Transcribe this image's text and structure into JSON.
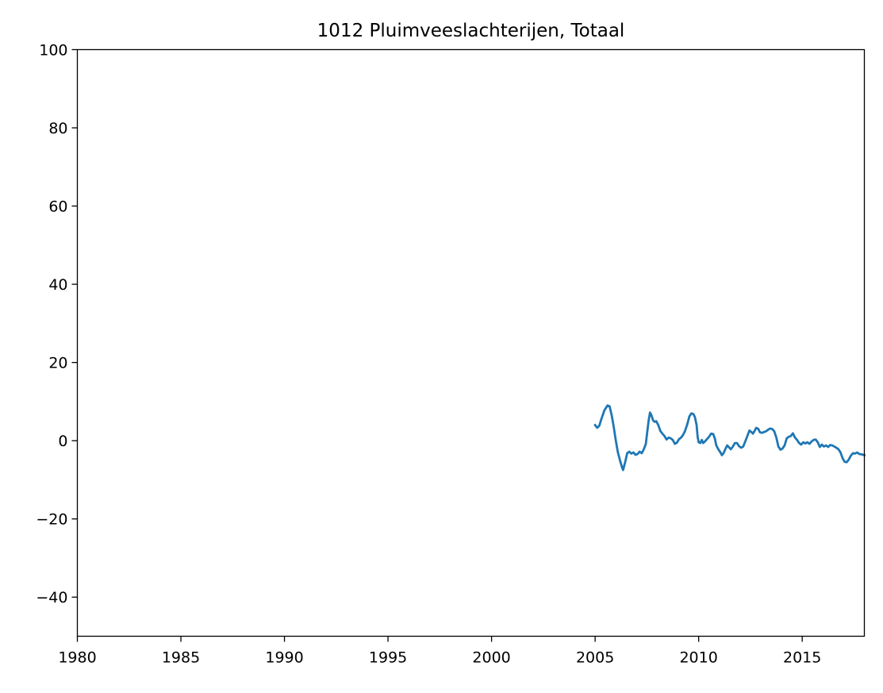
{
  "chart_data": {
    "type": "line",
    "title": "1012 Pluimveeslachterijen, Totaal",
    "xlabel": "",
    "ylabel": "",
    "xlim": [
      1980,
      2018
    ],
    "ylim": [
      -50,
      100
    ],
    "x_ticks": [
      1980,
      1985,
      1990,
      1995,
      2000,
      2005,
      2010,
      2015
    ],
    "y_ticks": [
      -40,
      -20,
      0,
      20,
      40,
      60,
      80,
      100
    ],
    "y_tick_labels": [
      "−40",
      "−20",
      "0",
      "20",
      "40",
      "60",
      "80",
      "100"
    ],
    "grid": false,
    "series": [
      {
        "color": "#1f77b4",
        "points": [
          [
            2005.0,
            4.0
          ],
          [
            2005.1,
            3.3
          ],
          [
            2005.2,
            3.8
          ],
          [
            2005.3,
            5.5
          ],
          [
            2005.45,
            7.8
          ],
          [
            2005.6,
            9.0
          ],
          [
            2005.7,
            8.8
          ],
          [
            2005.8,
            6.5
          ],
          [
            2005.9,
            3.5
          ],
          [
            2006.0,
            0.0
          ],
          [
            2006.1,
            -3.0
          ],
          [
            2006.2,
            -5.0
          ],
          [
            2006.3,
            -6.8
          ],
          [
            2006.35,
            -7.5
          ],
          [
            2006.45,
            -5.5
          ],
          [
            2006.55,
            -3.2
          ],
          [
            2006.65,
            -2.8
          ],
          [
            2006.75,
            -3.3
          ],
          [
            2006.85,
            -3.0
          ],
          [
            2006.95,
            -3.6
          ],
          [
            2007.05,
            -3.4
          ],
          [
            2007.15,
            -2.8
          ],
          [
            2007.25,
            -3.2
          ],
          [
            2007.35,
            -2.2
          ],
          [
            2007.45,
            -0.8
          ],
          [
            2007.5,
            1.5
          ],
          [
            2007.58,
            5.0
          ],
          [
            2007.65,
            7.2
          ],
          [
            2007.72,
            6.5
          ],
          [
            2007.8,
            5.2
          ],
          [
            2007.88,
            4.8
          ],
          [
            2007.95,
            5.0
          ],
          [
            2008.05,
            4.0
          ],
          [
            2008.15,
            2.5
          ],
          [
            2008.25,
            1.8
          ],
          [
            2008.35,
            1.2
          ],
          [
            2008.45,
            0.3
          ],
          [
            2008.55,
            0.8
          ],
          [
            2008.65,
            0.6
          ],
          [
            2008.75,
            0.2
          ],
          [
            2008.85,
            -0.8
          ],
          [
            2008.95,
            -0.5
          ],
          [
            2009.05,
            0.4
          ],
          [
            2009.15,
            0.8
          ],
          [
            2009.25,
            1.5
          ],
          [
            2009.35,
            2.6
          ],
          [
            2009.45,
            4.2
          ],
          [
            2009.55,
            6.2
          ],
          [
            2009.65,
            7.0
          ],
          [
            2009.75,
            6.8
          ],
          [
            2009.82,
            6.0
          ],
          [
            2009.9,
            4.0
          ],
          [
            2009.95,
            1.0
          ],
          [
            2010.0,
            -0.4
          ],
          [
            2010.08,
            -0.6
          ],
          [
            2010.15,
            0.2
          ],
          [
            2010.22,
            -0.6
          ],
          [
            2010.3,
            -0.2
          ],
          [
            2010.4,
            0.4
          ],
          [
            2010.5,
            1.0
          ],
          [
            2010.6,
            1.8
          ],
          [
            2010.7,
            1.7
          ],
          [
            2010.78,
            0.6
          ],
          [
            2010.85,
            -1.2
          ],
          [
            2010.95,
            -2.2
          ],
          [
            2011.05,
            -3.0
          ],
          [
            2011.12,
            -3.7
          ],
          [
            2011.2,
            -3.2
          ],
          [
            2011.3,
            -2.0
          ],
          [
            2011.38,
            -1.2
          ],
          [
            2011.45,
            -1.6
          ],
          [
            2011.55,
            -2.2
          ],
          [
            2011.65,
            -1.5
          ],
          [
            2011.75,
            -0.6
          ],
          [
            2011.85,
            -0.6
          ],
          [
            2011.95,
            -1.4
          ],
          [
            2012.05,
            -1.8
          ],
          [
            2012.15,
            -1.5
          ],
          [
            2012.25,
            -0.2
          ],
          [
            2012.35,
            1.2
          ],
          [
            2012.45,
            2.6
          ],
          [
            2012.55,
            2.2
          ],
          [
            2012.62,
            1.8
          ],
          [
            2012.7,
            2.5
          ],
          [
            2012.78,
            3.3
          ],
          [
            2012.88,
            3.0
          ],
          [
            2012.95,
            2.2
          ],
          [
            2013.05,
            2.0
          ],
          [
            2013.15,
            2.2
          ],
          [
            2013.25,
            2.4
          ],
          [
            2013.35,
            2.8
          ],
          [
            2013.45,
            3.1
          ],
          [
            2013.55,
            3.0
          ],
          [
            2013.65,
            2.4
          ],
          [
            2013.75,
            0.8
          ],
          [
            2013.85,
            -1.5
          ],
          [
            2013.95,
            -2.3
          ],
          [
            2014.05,
            -2.0
          ],
          [
            2014.15,
            -1.2
          ],
          [
            2014.25,
            0.6
          ],
          [
            2014.35,
            1.0
          ],
          [
            2014.45,
            1.2
          ],
          [
            2014.55,
            1.9
          ],
          [
            2014.65,
            0.8
          ],
          [
            2014.75,
            0.2
          ],
          [
            2014.85,
            -0.6
          ],
          [
            2014.95,
            -1.0
          ],
          [
            2015.05,
            -0.4
          ],
          [
            2015.15,
            -0.7
          ],
          [
            2015.25,
            -0.4
          ],
          [
            2015.35,
            -0.8
          ],
          [
            2015.45,
            -0.2
          ],
          [
            2015.55,
            0.2
          ],
          [
            2015.65,
            0.3
          ],
          [
            2015.75,
            -0.4
          ],
          [
            2015.85,
            -1.6
          ],
          [
            2015.95,
            -1.0
          ],
          [
            2016.05,
            -1.5
          ],
          [
            2016.15,
            -1.2
          ],
          [
            2016.25,
            -1.6
          ],
          [
            2016.35,
            -1.1
          ],
          [
            2016.45,
            -1.2
          ],
          [
            2016.55,
            -1.5
          ],
          [
            2016.65,
            -1.8
          ],
          [
            2016.75,
            -2.2
          ],
          [
            2016.85,
            -3.0
          ],
          [
            2016.95,
            -4.5
          ],
          [
            2017.05,
            -5.4
          ],
          [
            2017.15,
            -5.5
          ],
          [
            2017.25,
            -4.8
          ],
          [
            2017.35,
            -3.8
          ],
          [
            2017.45,
            -3.2
          ],
          [
            2017.55,
            -3.3
          ],
          [
            2017.65,
            -3.0
          ],
          [
            2017.75,
            -3.4
          ],
          [
            2017.85,
            -3.5
          ],
          [
            2017.95,
            -3.6
          ],
          [
            2018.0,
            -3.7
          ]
        ]
      }
    ]
  }
}
